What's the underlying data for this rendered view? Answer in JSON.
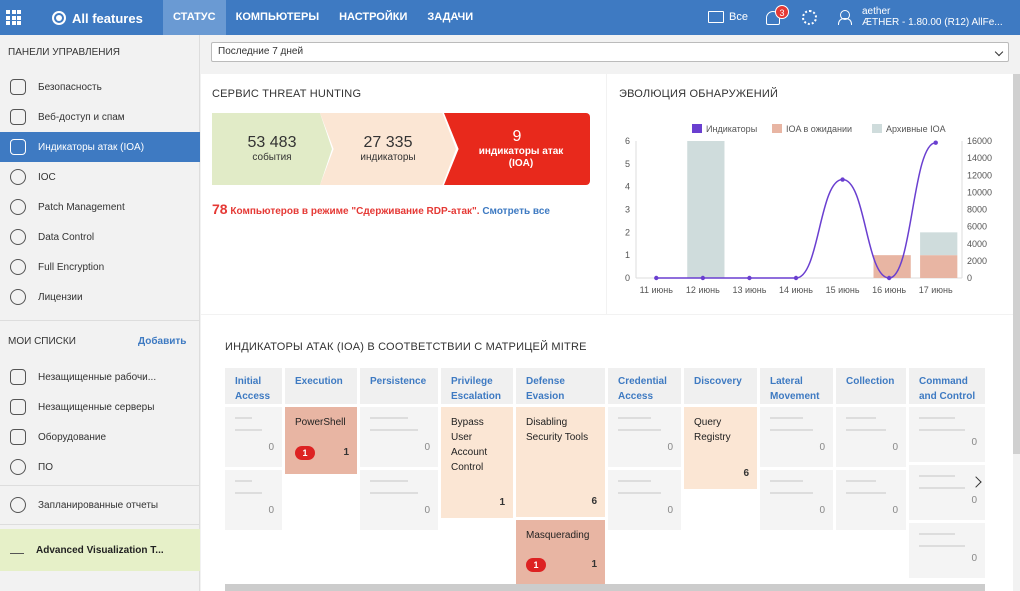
{
  "topbar": {
    "brand": "All features",
    "nav": [
      "СТАТУС",
      "КОМПЬЮТЕРЫ",
      "НАСТРОЙКИ",
      "ЗАДАЧИ"
    ],
    "folder_label": "Все",
    "notifications": "3",
    "user_name": "aether",
    "user_version": "ÆTHER - 1.80.00 (R12) AllFe..."
  },
  "sidebar": {
    "section1": "ПАНЕЛИ УПРАВЛЕНИЯ",
    "items": [
      "Безопасность",
      "Веб-доступ и спам",
      "Индикаторы атак (IOA)",
      "IOC",
      "Patch Management",
      "Data Control",
      "Full Encryption",
      "Лицензии"
    ],
    "section2": "МОИ СПИСКИ",
    "add": "Добавить",
    "lists": [
      "Незащищенные рабочи...",
      "Незащищенные серверы",
      "Оборудование",
      "ПО"
    ],
    "reports": "Запланированные отчеты",
    "advanced": "Advanced Visualization T..."
  },
  "period": "Последние 7 дней",
  "threat": {
    "title": "СЕРВИС THREAT HUNTING",
    "events_value": "53 483",
    "events_label": "события",
    "indicators_value": "27 335",
    "indicators_label": "индикаторы",
    "ioa_value": "9",
    "ioa_label": "индикаторы атак (IOA)",
    "rdp_count": "78",
    "rdp_text": "Компьютеров в режиме \"Сдерживание RDP-атак\".",
    "rdp_link": "Смотреть все"
  },
  "chart_data": {
    "type": "bar",
    "title": "ЭВОЛЮЦИЯ ОБНАРУЖЕНИЙ",
    "categories": [
      "11 июнь",
      "12 июнь",
      "13 июнь",
      "14 июнь",
      "15 июнь",
      "16 июнь",
      "17 июнь"
    ],
    "series": [
      {
        "name": "Индикаторы",
        "type": "line",
        "axis": "right",
        "values": [
          0,
          0,
          0,
          0,
          11500,
          0,
          15800
        ]
      },
      {
        "name": "IOA в ожидании",
        "type": "bar",
        "axis": "left",
        "values": [
          0,
          0,
          0,
          0,
          0,
          1,
          1
        ]
      },
      {
        "name": "Архивные IOA",
        "type": "bar",
        "axis": "left",
        "values": [
          0,
          6,
          0,
          0,
          0,
          0,
          1
        ]
      }
    ],
    "left_ticks": [
      "0",
      "1",
      "2",
      "3",
      "4",
      "5",
      "6"
    ],
    "right_ticks": [
      "0",
      "2000",
      "4000",
      "6000",
      "8000",
      "10000",
      "12000",
      "14000",
      "16000"
    ],
    "ylim_left": [
      0,
      6
    ],
    "ylim_right": [
      0,
      16000
    ],
    "colors": [
      "#6a3fd0",
      "#e8b5a3",
      "#cfdcdc"
    ],
    "legend": "top"
  },
  "mitre": {
    "title": "ИНДИКАТОРЫ АТАК (IOA) В СООТВЕТСТВИИ С МАТРИЦЕЙ MITRE",
    "columns": [
      {
        "name": "Initial Access",
        "cells": [
          {
            "kind": "empty",
            "value": "0"
          },
          {
            "kind": "empty",
            "value": "0"
          }
        ]
      },
      {
        "name": "Execution",
        "cells": [
          {
            "kind": "red",
            "label": "PowerShell",
            "pill": "1",
            "value": "1"
          }
        ]
      },
      {
        "name": "Persistence",
        "cells": [
          {
            "kind": "empty",
            "value": "0"
          },
          {
            "kind": "empty",
            "value": "0"
          }
        ]
      },
      {
        "name": "Privilege Escalation",
        "cells": [
          {
            "kind": "tan",
            "label": "Bypass User Account Control",
            "value": "1"
          }
        ]
      },
      {
        "name": "Defense Evasion",
        "cells": [
          {
            "kind": "tan",
            "label": "Disabling Security Tools",
            "value": "6"
          },
          {
            "kind": "red",
            "label": "Masquerading",
            "pill": "1",
            "value": "1"
          }
        ]
      },
      {
        "name": "Credential Access",
        "cells": [
          {
            "kind": "empty",
            "value": "0"
          },
          {
            "kind": "empty",
            "value": "0"
          }
        ]
      },
      {
        "name": "Discovery",
        "cells": [
          {
            "kind": "tan",
            "label": "Query Registry",
            "value": "6"
          }
        ]
      },
      {
        "name": "Lateral Movement",
        "cells": [
          {
            "kind": "empty",
            "value": "0"
          },
          {
            "kind": "empty",
            "value": "0"
          }
        ]
      },
      {
        "name": "Collection",
        "cells": [
          {
            "kind": "empty",
            "value": "0"
          },
          {
            "kind": "empty",
            "value": "0"
          }
        ]
      },
      {
        "name": "Command and Control",
        "cells": [
          {
            "kind": "empty",
            "value": "0"
          },
          {
            "kind": "empty",
            "value": "0"
          },
          {
            "kind": "empty",
            "value": "0"
          }
        ]
      }
    ]
  }
}
